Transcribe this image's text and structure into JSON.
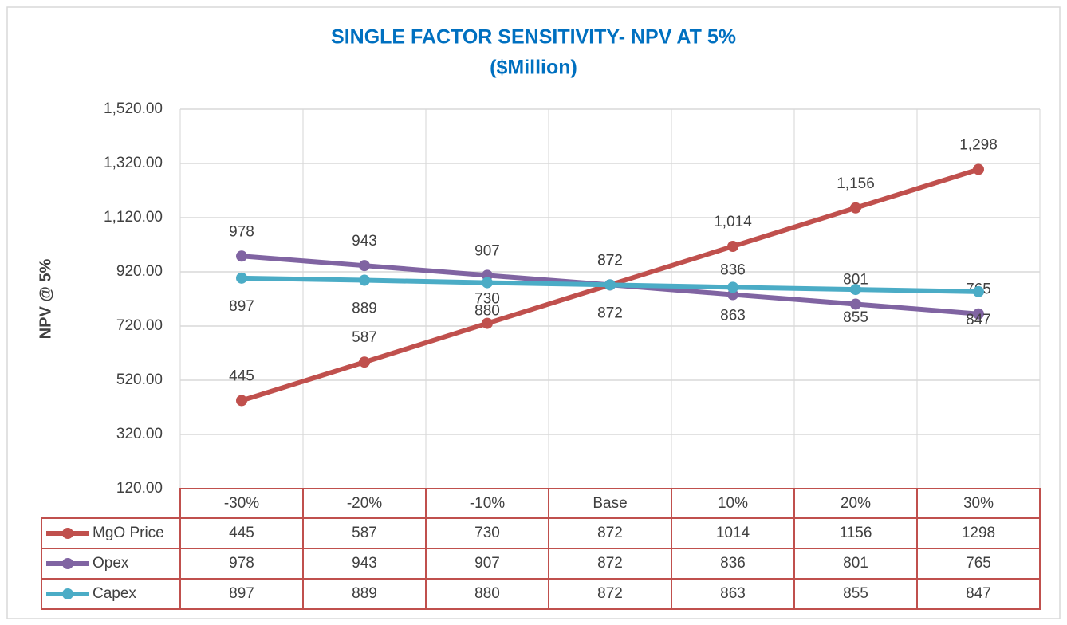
{
  "chart_data": {
    "type": "line",
    "title": "SINGLE FACTOR SENSITIVITY- NPV AT 5%",
    "subtitle": "($Million)",
    "y_label": "NPV @ 5%",
    "categories": [
      "-30%",
      "-20%",
      "-10%",
      "Base",
      "10%",
      "20%",
      "30%"
    ],
    "series": [
      {
        "name": "MgO Price",
        "color": "#c0504d",
        "values": [
          445,
          587,
          730,
          872,
          1014,
          1156,
          1298
        ],
        "value_labels": [
          "445",
          "587",
          "730",
          "872",
          "1,014",
          "1,156",
          "1,298"
        ]
      },
      {
        "name": "Opex",
        "color": "#8064a2",
        "values": [
          978,
          943,
          907,
          872,
          836,
          801,
          765
        ]
      },
      {
        "name": "Capex",
        "color": "#4bacc6",
        "values": [
          897,
          889,
          880,
          872,
          863,
          855,
          847
        ]
      }
    ],
    "ylim": [
      120,
      1520
    ],
    "yticks": [
      {
        "value": 120,
        "label": "120.00"
      },
      {
        "value": 320,
        "label": "320.00"
      },
      {
        "value": 520,
        "label": "520.00"
      },
      {
        "value": 720,
        "label": "720.00"
      },
      {
        "value": 920,
        "label": "920.00"
      },
      {
        "value": 1120,
        "label": "1,120.00"
      },
      {
        "value": 1320,
        "label": "1,320.00"
      },
      {
        "value": 1520,
        "label": "1,520.00"
      }
    ],
    "grid": true,
    "legend": "data-table"
  }
}
